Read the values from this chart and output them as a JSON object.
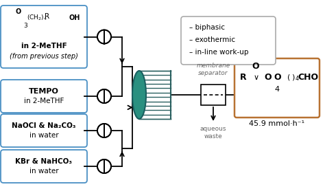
{
  "bg_color": "#ffffff",
  "box_blue": "#4a90c4",
  "box_product_color": "#b87333",
  "box_legend_color": "#999999",
  "coil_teal": "#2a9080",
  "coil_teal_dark": "#1a6060",
  "coil_line_color": "#2a6060",
  "line_color": "#000000",
  "gray_text": "#666666",
  "box1_line1": "in 2-MeTHF",
  "box1_line2": "(from previous step)",
  "box2_line1": "TEMPO",
  "box2_line2": "in 2-MeTHF",
  "box3_line1": "NaOCl & Na₂CO₃",
  "box3_line2": "in water",
  "box4_line1": "KBr & NaHCO₃",
  "box4_line2": "in water",
  "legend_lines": [
    "– biphasic",
    "– exothermic",
    "– in-line work-up"
  ],
  "product_yield": "45.9 mmol·h⁻¹",
  "membrane_label": "membrane\nseparator",
  "aqueous_label": "aqueous\nwaste"
}
